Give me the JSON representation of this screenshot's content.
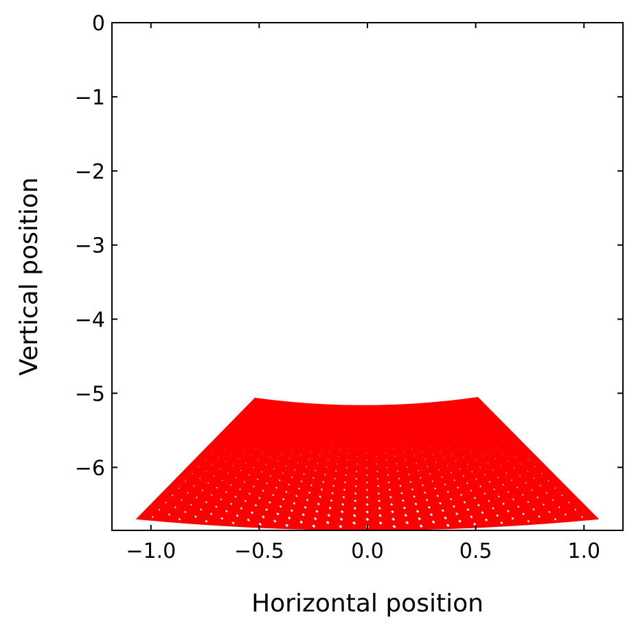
{
  "chart_data": {
    "type": "line",
    "title": "",
    "xlabel": "Horizontal position",
    "ylabel": "Vertical position",
    "xlim": [
      -1.18,
      1.18
    ],
    "ylim": [
      -6.85,
      0
    ],
    "xticks": [
      -1.0,
      -0.5,
      0.0,
      0.5,
      1.0
    ],
    "xtick_labels": [
      "−1.0",
      "−0.5",
      "0.0",
      "0.5",
      "1.0"
    ],
    "yticks": [
      0,
      -1,
      -2,
      -3,
      -4,
      -5,
      -6
    ],
    "ytick_labels": [
      "0",
      "−1",
      "−2",
      "−3",
      "−4",
      "−5",
      "−6"
    ],
    "grid": false,
    "ticks_direction": "in",
    "series_color": "#ff0000",
    "mesh": {
      "description": "grid of curves from two families of radial lines",
      "corners": {
        "top_left": [
          -0.52,
          -5.06
        ],
        "top_right": [
          0.51,
          -5.05
        ],
        "bottom_left": [
          -1.07,
          -6.7
        ],
        "bottom_right": [
          1.07,
          -6.7
        ]
      },
      "top_edge_mid_y": -5.16,
      "bottom_edge_mid_y": -6.85,
      "divisions": 34
    }
  }
}
